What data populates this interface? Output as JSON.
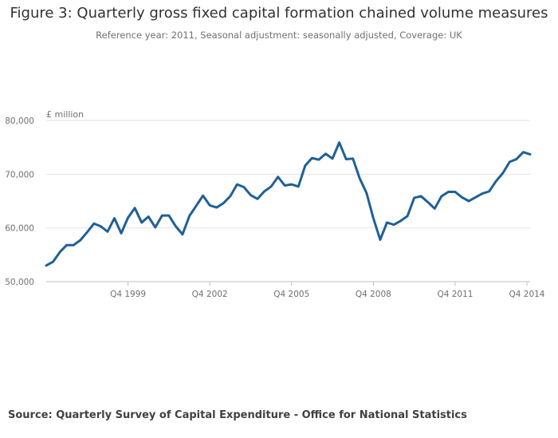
{
  "title": "Figure 3: Quarterly gross fixed capital formation chained volume measures",
  "subtitle": "Reference year: 2011, Seasonal adjustment: seasonally adjusted, Coverage: UK",
  "source": "Source: Quarterly Survey of Capital Expenditure - Office for National Statistics",
  "colors": {
    "line": "#206095",
    "grid": "#e2e2e3",
    "text": "#707071"
  },
  "chart_data": {
    "type": "line",
    "title": "Figure 3: Quarterly gross fixed capital formation chained volume measures",
    "ylabel": "£ million",
    "xlabel": "",
    "ylim": [
      50000,
      80000
    ],
    "yticks": [
      50000,
      60000,
      70000,
      80000
    ],
    "ytick_labels": [
      "50,000",
      "60,000",
      "70,000",
      "80,000"
    ],
    "xtick_labels": [
      "Q4 1999",
      "Q4 2002",
      "Q4 2005",
      "Q4 2008",
      "Q4 2011",
      "Q4 2014"
    ],
    "xtick_indices": [
      12,
      24,
      36,
      48,
      60,
      72
    ],
    "x_start": "Q1 1997",
    "x_end": "Q4 2014",
    "series": [
      {
        "name": "Gross fixed capital formation",
        "values": [
          53000,
          53700,
          55500,
          56800,
          56800,
          57700,
          59200,
          60800,
          60300,
          59300,
          61800,
          59000,
          61900,
          63700,
          61000,
          62100,
          60100,
          62300,
          62300,
          60300,
          58800,
          62200,
          64100,
          66000,
          64200,
          63800,
          64600,
          65900,
          68100,
          67600,
          66100,
          65400,
          66800,
          67700,
          69500,
          67900,
          68100,
          67700,
          71600,
          73000,
          72700,
          73800,
          72900,
          75900,
          72800,
          72900,
          69200,
          66500,
          61800,
          57800,
          61000,
          60600,
          61300,
          62200,
          65600,
          65900,
          64800,
          63600,
          65900,
          66700,
          66700,
          65700,
          65000,
          65700,
          66400,
          66800,
          68700,
          70200,
          72300,
          72800,
          74100,
          73700
        ]
      }
    ]
  }
}
